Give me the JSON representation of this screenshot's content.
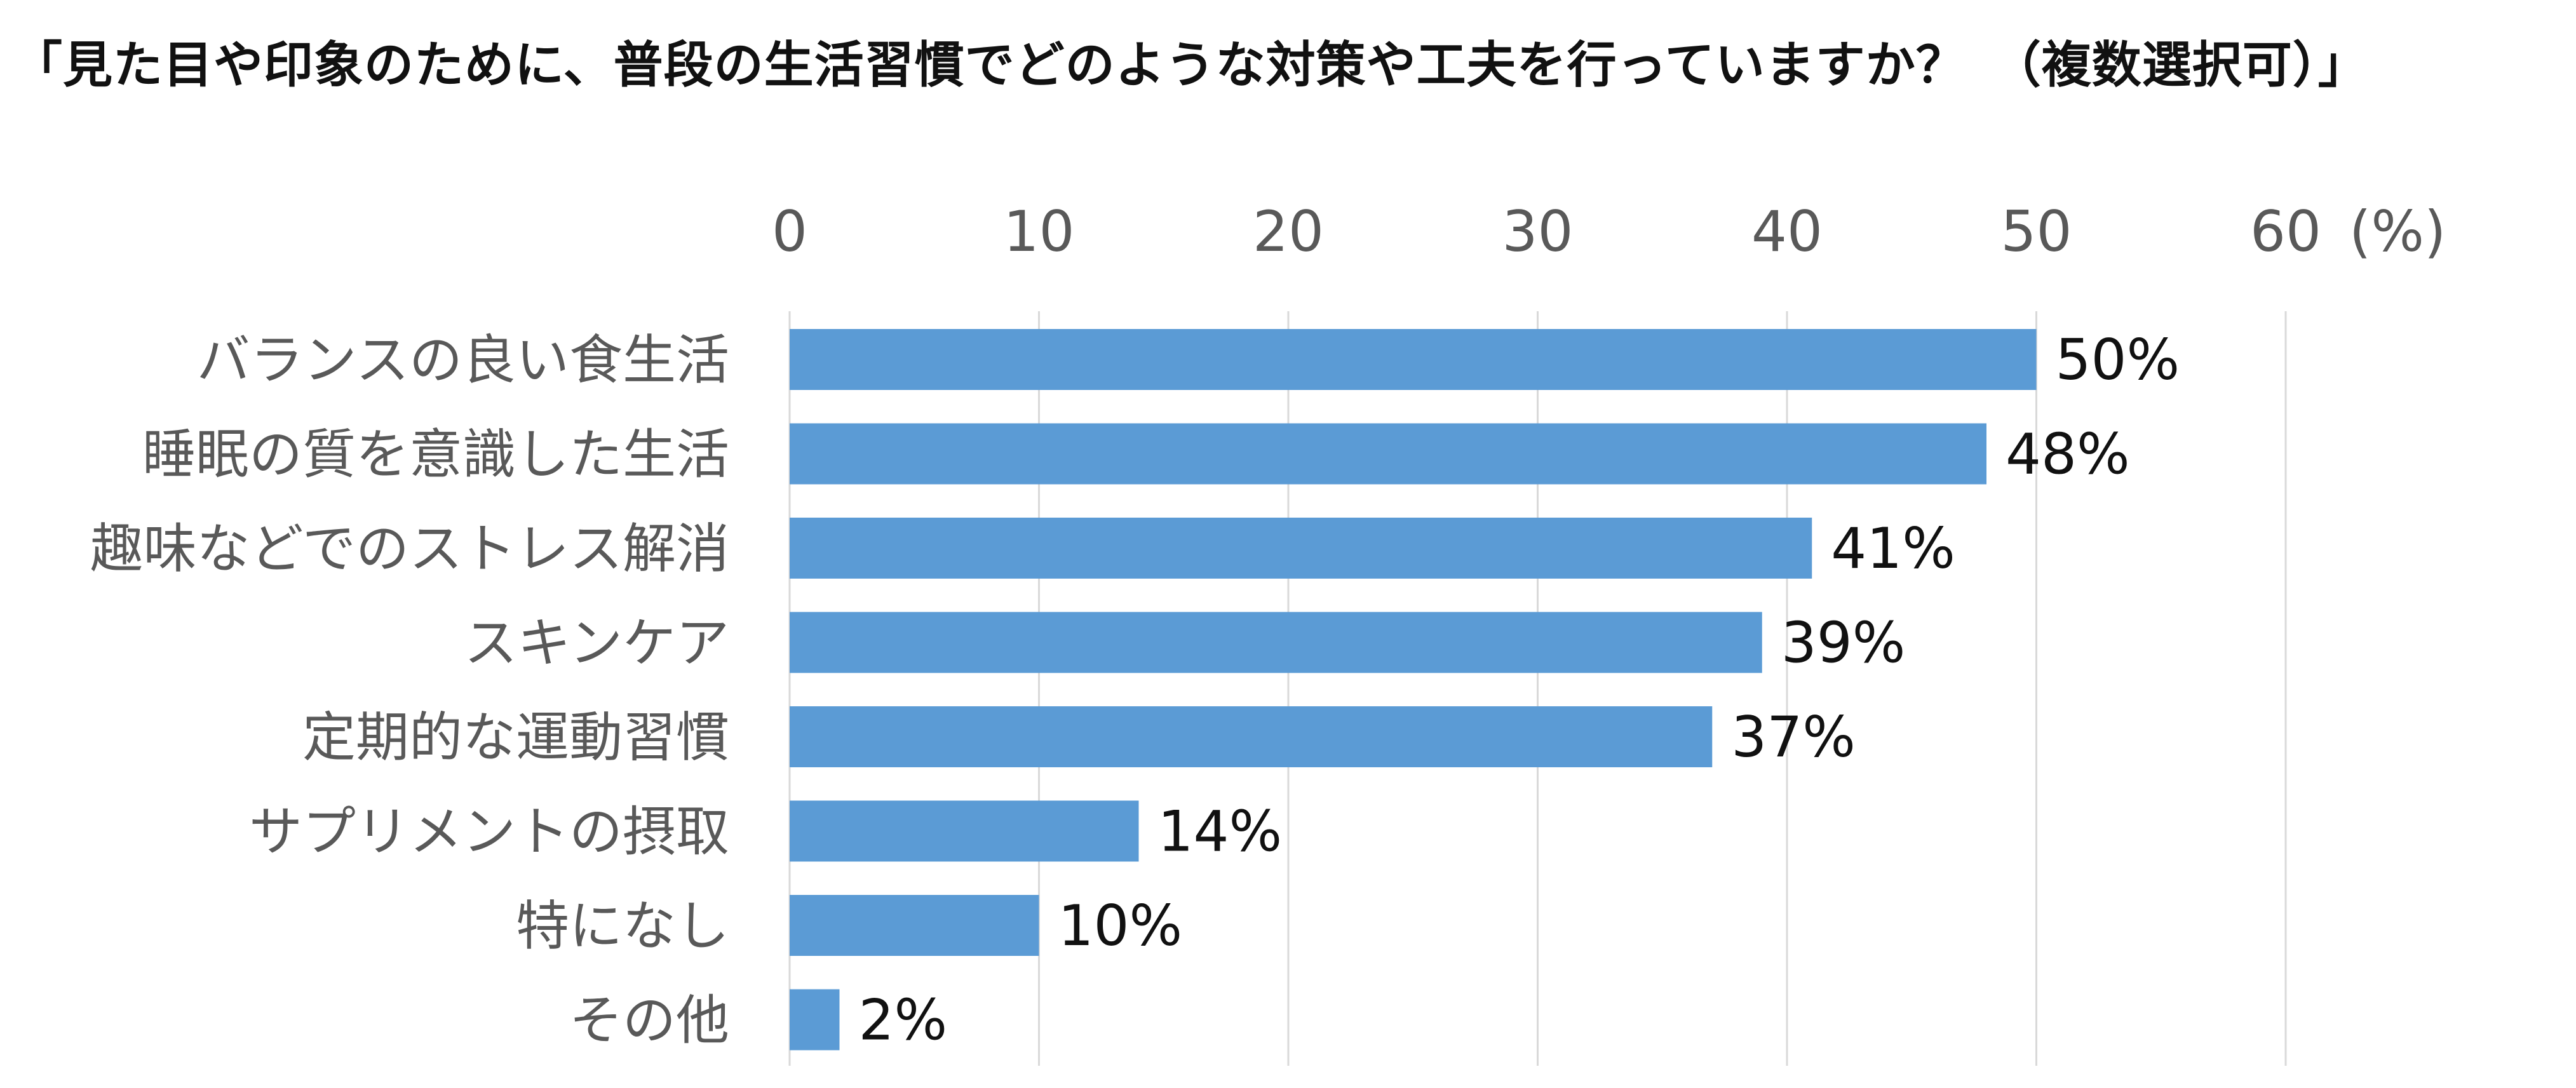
{
  "chart_data": {
    "type": "bar",
    "orientation": "horizontal",
    "title": "「見た目や印象のために、普段の生活習慣でどのような対策や工夫を行っていますか？　（複数選択可）」",
    "categories": [
      "バランスの良い食生活",
      "睡眠の質を意識した生活",
      "趣味などでのストレス解消",
      "スキンケア",
      "定期的な運動習慣",
      "サプリメントの摂取",
      "特になし",
      "その他"
    ],
    "values": [
      50,
      48,
      41,
      39,
      37,
      14,
      10,
      2
    ],
    "value_labels": [
      "50%",
      "48%",
      "41%",
      "39%",
      "37%",
      "14%",
      "10%",
      "2%"
    ],
    "x_ticks": [
      "0",
      "10",
      "20",
      "30",
      "40",
      "50",
      "60"
    ],
    "x_unit_label": "(%)",
    "xlim": [
      0,
      60
    ],
    "x_axis_position": "top",
    "grid": true,
    "legend": "none",
    "colors": {
      "bar": "#5B9BD5",
      "grid": "#D9D9D9",
      "tick_text": "#595959",
      "category_text": "#595959",
      "value_text": "#111111"
    }
  }
}
